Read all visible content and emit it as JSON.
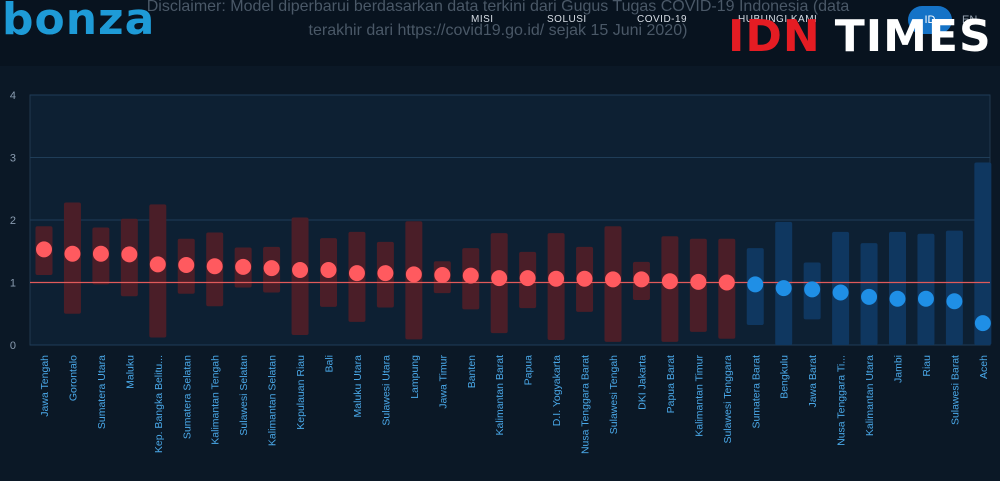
{
  "header": {
    "logo_text": "bonza",
    "disclaimer": "Disclaimer: Model diperbarui berdasarkan data terkini dari Gugus Tugas COVID-19 Indonesia (data terakhir dari https://covid19.go.id/ sejak 15 Juni 2020)",
    "nav": [
      "MISI",
      "SOLUSI",
      "COVID-19",
      "HUBUNGI KAMI"
    ],
    "lang_active": "ID",
    "lang_other": "EN"
  },
  "watermark": {
    "part1": "IDN",
    "part2": "TIMES"
  },
  "colors": {
    "above_one": "#ff5a5f",
    "above_one_bar": "#4a1e28",
    "below_one": "#1f8fe6",
    "below_one_bar": "#0f3760",
    "reference_line": "#e05a5a"
  },
  "chart_data": {
    "type": "scatter",
    "title": "",
    "xlabel": "",
    "ylabel": "",
    "ylim": [
      0,
      4
    ],
    "yticks": [
      0,
      1,
      2,
      3,
      4
    ],
    "reference_line": 1,
    "grid": true,
    "categories": [
      "Jawa Tengah",
      "Gorontalo",
      "Sumatera Utara",
      "Maluku",
      "Kep. Bangka Belitu...",
      "Sumatera Selatan",
      "Kalimantan Tengah",
      "Sulawesi Selatan",
      "Kalimantan Selatan",
      "Kepulauan Riau",
      "Bali",
      "Maluku Utara",
      "Sulawesi Utara",
      "Lampung",
      "Jawa Timur",
      "Banten",
      "Kalimantan Barat",
      "Papua",
      "D.I. Yogyakarta",
      "Nusa Tenggara Barat",
      "Sulawesi Tengah",
      "DKI Jakarta",
      "Papua Barat",
      "Kalimantan Timur",
      "Sulawesi Tenggara",
      "Sumatera Barat",
      "Bengkulu",
      "Jawa Barat",
      "Nusa Tenggara Ti...",
      "Kalimantan Utara",
      "Jambi",
      "Riau",
      "Sulawesi Barat",
      "Aceh"
    ],
    "values": [
      1.53,
      1.46,
      1.46,
      1.45,
      1.29,
      1.28,
      1.26,
      1.25,
      1.23,
      1.2,
      1.2,
      1.15,
      1.15,
      1.13,
      1.12,
      1.11,
      1.07,
      1.07,
      1.06,
      1.06,
      1.05,
      1.05,
      1.02,
      1.01,
      1.0,
      0.97,
      0.91,
      0.89,
      0.84,
      0.77,
      0.74,
      0.74,
      0.7,
      0.35
    ],
    "lower": [
      1.12,
      0.5,
      0.97,
      0.78,
      0.12,
      0.82,
      0.62,
      0.92,
      0.84,
      0.16,
      0.61,
      0.37,
      0.6,
      0.09,
      0.83,
      0.57,
      0.19,
      0.59,
      0.08,
      0.53,
      0.05,
      0.72,
      0.05,
      0.21,
      0.1,
      0.32,
      0.0,
      0.41,
      0.0,
      0.0,
      0.0,
      0.0,
      0.0,
      0.0
    ],
    "upper": [
      1.9,
      2.28,
      1.88,
      2.02,
      2.25,
      1.7,
      1.8,
      1.56,
      1.57,
      2.04,
      1.71,
      1.81,
      1.65,
      1.98,
      1.34,
      1.55,
      1.79,
      1.49,
      1.79,
      1.57,
      1.9,
      1.33,
      1.74,
      1.7,
      1.7,
      1.55,
      1.97,
      1.32,
      1.81,
      1.63,
      1.81,
      1.78,
      1.83,
      2.92
    ]
  }
}
